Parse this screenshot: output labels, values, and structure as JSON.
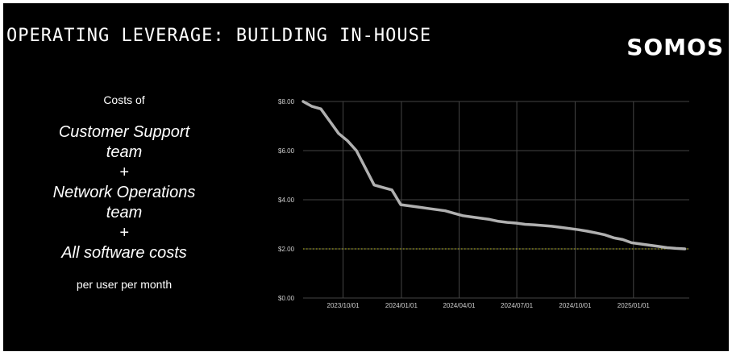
{
  "slide": {
    "title": "OPERATING LEVERAGE: BUILDING IN-HOUSE",
    "logo": "SOMOS",
    "left": {
      "costs_of": "Costs of",
      "lines": [
        "Customer Support",
        "team",
        "+",
        "Network Operations",
        "team",
        "+",
        "All software costs"
      ],
      "footer": "per user per month"
    }
  },
  "colors": {
    "background": "#000000",
    "line": "#b0b0b0",
    "reference": "#c8c820",
    "grid": "#444444",
    "text": "#ffffff"
  },
  "chart_data": {
    "type": "line",
    "title": "",
    "xlabel": "",
    "ylabel": "",
    "x_ticks": [
      "2023/10/01",
      "2024/01/01",
      "2024/04/01",
      "2024/07/01",
      "2024/10/01",
      "2025/01/01"
    ],
    "y_ticks": [
      "$0.00",
      "$2.00",
      "$4.00",
      "$6.00",
      "$8.00"
    ],
    "ylim": [
      0,
      8
    ],
    "xlim": [
      "2023/07/30",
      "2025/03/30"
    ],
    "grid": true,
    "reference_line": {
      "y": 2.0,
      "style": "dotted"
    },
    "series": [
      {
        "x": [
          "2023/07/30",
          "2023/08/13",
          "2023/08/27",
          "2023/09/10",
          "2023/09/24",
          "2023/10/08",
          "2023/10/22",
          "2023/11/05",
          "2023/11/19",
          "2023/12/03",
          "2023/12/17",
          "2023/12/31",
          "2024/01/14",
          "2024/01/28",
          "2024/02/11",
          "2024/02/25",
          "2024/03/10",
          "2024/03/24",
          "2024/04/07",
          "2024/04/21",
          "2024/05/05",
          "2024/05/19",
          "2024/06/02",
          "2024/06/16",
          "2024/06/30",
          "2024/07/14",
          "2024/07/28",
          "2024/08/11",
          "2024/08/25",
          "2024/09/08",
          "2024/09/22",
          "2024/10/06",
          "2024/10/20",
          "2024/11/03",
          "2024/11/17",
          "2024/12/01",
          "2024/12/15",
          "2024/12/29",
          "2025/01/12",
          "2025/01/26",
          "2025/02/09",
          "2025/02/23",
          "2025/03/09",
          "2025/03/23"
        ],
        "values": [
          8.0,
          7.8,
          7.7,
          7.2,
          6.7,
          6.4,
          6.0,
          5.3,
          4.6,
          4.5,
          4.4,
          3.8,
          3.75,
          3.7,
          3.65,
          3.6,
          3.55,
          3.45,
          3.35,
          3.3,
          3.25,
          3.2,
          3.12,
          3.08,
          3.05,
          3.0,
          2.98,
          2.95,
          2.92,
          2.88,
          2.83,
          2.78,
          2.72,
          2.65,
          2.57,
          2.45,
          2.38,
          2.25,
          2.2,
          2.15,
          2.1,
          2.05,
          2.02,
          2.0
        ]
      }
    ]
  }
}
